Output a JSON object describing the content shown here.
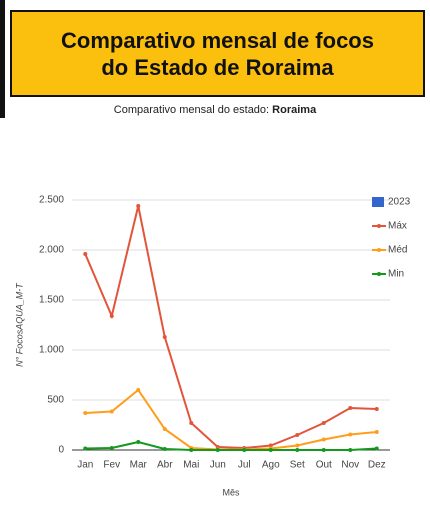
{
  "header": {
    "title": "Comparativo mensal de focos do Estado de Roraima",
    "subtitle": "Comparativo mensal do estado:",
    "state": "Roraima"
  },
  "chart_data": {
    "type": "line",
    "y_label": "N° FocosAQUA_M-T",
    "x_label": "Mês",
    "categories": [
      "Jan",
      "Fev",
      "Mar",
      "Abr",
      "Mai",
      "Jun",
      "Jul",
      "Ago",
      "Set",
      "Out",
      "Nov",
      "Dez"
    ],
    "series": [
      {
        "name": "2023",
        "color": "#3366cc",
        "kind": "bar",
        "values": [
          null,
          null,
          null,
          null,
          null,
          null,
          null,
          null,
          null,
          null,
          null,
          null
        ]
      },
      {
        "name": "Máx",
        "color": "#e2553a",
        "values": [
          1960,
          1340,
          2440,
          1130,
          270,
          30,
          20,
          45,
          150,
          270,
          420,
          410
        ]
      },
      {
        "name": "Méd",
        "color": "#ff9d1c",
        "values": [
          370,
          385,
          600,
          210,
          20,
          5,
          5,
          15,
          45,
          105,
          155,
          180
        ]
      },
      {
        "name": "Min",
        "color": "#139a1e",
        "values": [
          15,
          20,
          80,
          10,
          0,
          0,
          0,
          0,
          0,
          0,
          0,
          15
        ]
      }
    ],
    "ylim": [
      0,
      2500
    ],
    "yticks": [
      0,
      500,
      {
        "value": 1000,
        "label": "1.000"
      },
      {
        "value": 1500,
        "label": "1.500"
      },
      {
        "value": 2000,
        "label": "2.000"
      },
      {
        "value": 2500,
        "label": "2.500"
      }
    ],
    "grid": true,
    "legend": "right"
  }
}
